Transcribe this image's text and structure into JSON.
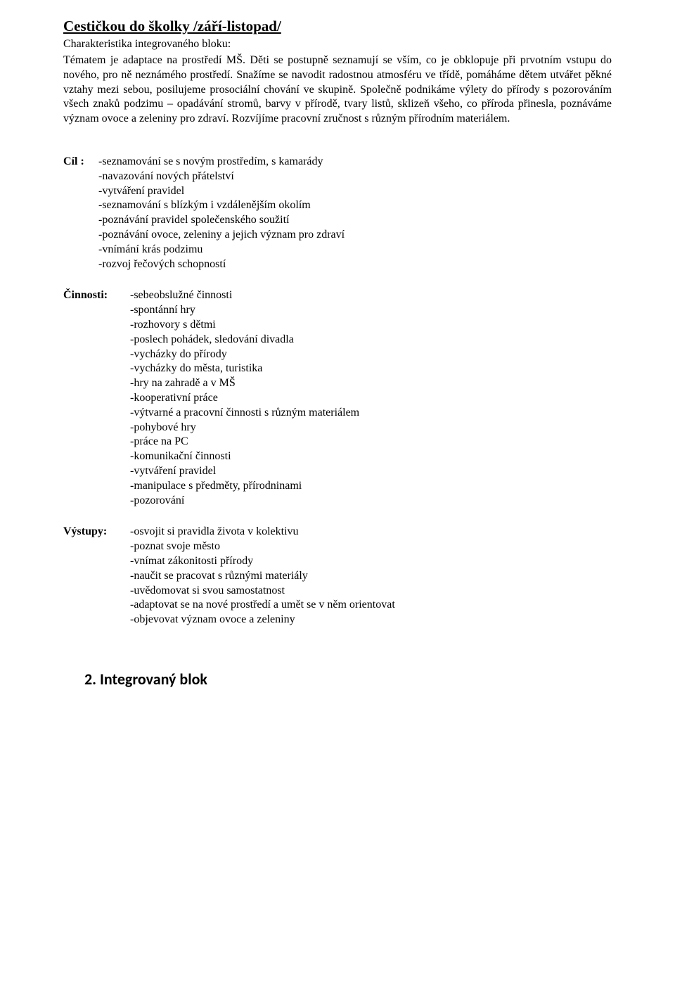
{
  "title": "Cestičkou do školky /září-listopad/",
  "subtitle": "Charakteristika integrovaného bloku:",
  "paragraph": "Tématem je adaptace na prostředí MŠ. Děti se postupně seznamují se vším, co je obklopuje při prvotním vstupu do nového, pro ně neznámého prostředí. Snažíme se navodit radostnou atmosféru ve třídě, pomáháme dětem utvářet pěkné vztahy mezi sebou, posilujeme prosociální chování ve skupině. Společně podnikáme výlety do přírody s pozorováním všech znaků podzimu – opadávání stromů, barvy v přírodě, tvary listů, sklizeň všeho, co příroda přinesla, poznáváme význam ovoce a zeleniny pro zdraví. Rozvíjíme pracovní zručnost s různým přírodním materiálem.",
  "cil": {
    "label": "Cíl :",
    "items": [
      "-seznamování se s novým prostředím, s kamarády",
      "-navazování nových přátelství",
      "-vytváření pravidel",
      "-seznamování s blízkým i vzdálenějším okolím",
      "-poznávání pravidel společenského soužití",
      "-poznávání ovoce, zeleniny a jejich význam pro zdraví",
      "-vnímání krás podzimu",
      "-rozvoj řečových schopností"
    ]
  },
  "cinnosti": {
    "label": "Činnosti:",
    "items": [
      "-sebeobslužné činnosti",
      "-spontánní hry",
      "-rozhovory s dětmi",
      "-poslech pohádek, sledování divadla",
      "-vycházky do přírody",
      "-vycházky do města, turistika",
      "-hry na zahradě a v MŠ",
      "-kooperativní práce",
      "-výtvarné a pracovní činnosti s různým materiálem",
      "-pohybové hry",
      "-práce na PC",
      "-komunikační činnosti",
      "-vytváření pravidel",
      "-manipulace s předměty, přírodninami",
      "-pozorování"
    ]
  },
  "vystupy": {
    "label": "Výstupy:",
    "items": [
      "-osvojit si pravidla života v kolektivu",
      "-poznat svoje město",
      "-vnímat zákonitosti přírody",
      "-naučit se pracovat s různými materiály",
      "-uvědomovat si svou samostatnost",
      "-adaptovat se na nové prostředí a umět se v něm orientovat",
      "-objevovat význam ovoce a zeleniny"
    ]
  },
  "footer": "2. Integrovaný blok"
}
